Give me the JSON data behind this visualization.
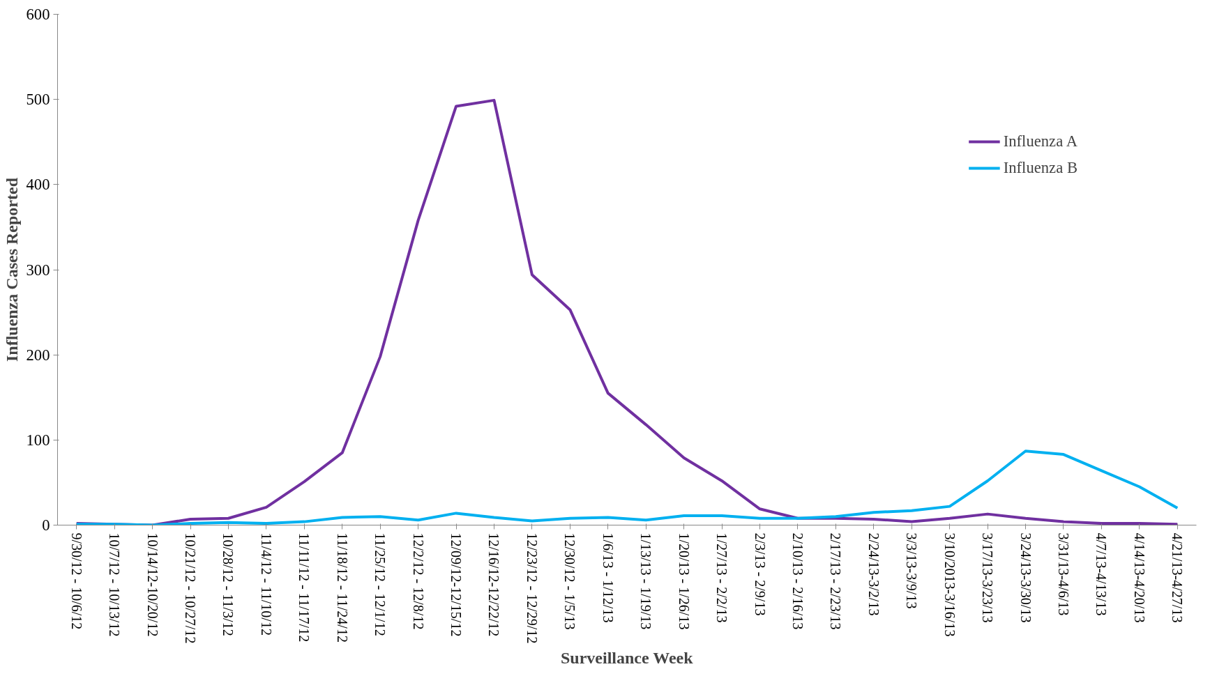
{
  "chart_data": {
    "type": "line",
    "xlabel": "Surveillance Week",
    "ylabel": "Influenza Cases Reported",
    "categories": [
      "9/30/12 - 10/6/12",
      "10/7/12 - 10/13/12",
      "10/14/12-10/20/12",
      "10/21/12 - 10/27/12",
      "10/28/12 - 11/3/12",
      "11/4/12 - 11/10/12",
      "11/11/12 - 11/17/12",
      "11/18/12 - 11/24/12",
      "11/25/12 - 12/1/12",
      "12/2/12 - 12/8/12",
      "12/09/12-12/15/12",
      "12/16/12-12/22/12",
      "12/23/12 - 12/29/12",
      "12/30/12 - 1/5/13",
      "1/6/13 - 1/12/13",
      "1/13/13 - 1/19/13",
      "1/20/13 - 1/26/13",
      "1/27/13 - 2/2/13",
      "2/3/13 - 2/9/13",
      "2/10/13 - 2/16/13",
      "2/17/13 - 2/23/13",
      "2/24/13-3/2/13",
      "3/3/13-3/9/13",
      "3/10/2013-3/16/13",
      "3/17/13-3/23/13",
      "3/24/13-3/30/13",
      "3/31/13-4/6/13",
      "4/7/13-4/13/13",
      "4/14/13-4/20/13",
      "4/21/13-4/27/13"
    ],
    "series": [
      {
        "name": "Influenza A",
        "color": "#7030a0",
        "values": [
          2,
          1,
          0,
          7,
          8,
          21,
          51,
          85,
          198,
          358,
          492,
          499,
          294,
          253,
          155,
          118,
          79,
          52,
          19,
          8,
          8,
          7,
          4,
          8,
          13,
          8,
          4,
          2,
          2,
          1
        ]
      },
      {
        "name": "Influenza B",
        "color": "#00b0f0",
        "values": [
          1,
          1,
          0,
          2,
          3,
          2,
          4,
          9,
          10,
          6,
          14,
          9,
          5,
          8,
          9,
          6,
          11,
          11,
          8,
          8,
          10,
          15,
          17,
          22,
          52,
          87,
          83,
          64,
          45,
          20
        ]
      }
    ],
    "ylim": [
      0,
      600
    ],
    "yticks": [
      0,
      100,
      200,
      300,
      400,
      500,
      600
    ],
    "grid": false,
    "legend": "top right",
    "marker": "none",
    "line_style": "solid"
  }
}
